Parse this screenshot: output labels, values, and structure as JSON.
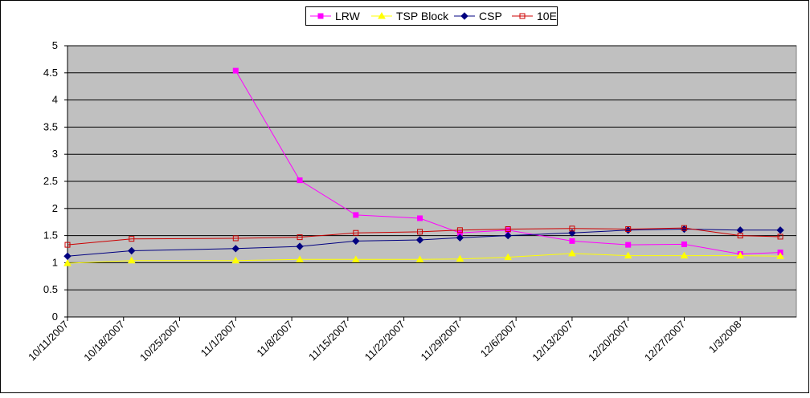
{
  "chart_data": {
    "type": "line",
    "title": "",
    "xlabel": "",
    "ylabel": "",
    "ylim": [
      0,
      5
    ],
    "ytick_step": 0.5,
    "yticks": [
      "0",
      "0.5",
      "1",
      "1.5",
      "2",
      "2.5",
      "3",
      "3.5",
      "4",
      "4.5",
      "5"
    ],
    "xlim": [
      "2007-10-11",
      "2008-01-10"
    ],
    "xticks": [
      {
        "date": "2007-10-11",
        "label": "10/11/2007"
      },
      {
        "date": "2007-10-18",
        "label": "10/18/2007"
      },
      {
        "date": "2007-10-25",
        "label": "10/25/2007"
      },
      {
        "date": "2007-11-01",
        "label": "11/1/2007"
      },
      {
        "date": "2007-11-08",
        "label": "11/8/2007"
      },
      {
        "date": "2007-11-15",
        "label": "11/15/2007"
      },
      {
        "date": "2007-11-22",
        "label": "11/22/2007"
      },
      {
        "date": "2007-11-29",
        "label": "11/29/2007"
      },
      {
        "date": "2007-12-06",
        "label": "12/6/2007"
      },
      {
        "date": "2007-12-13",
        "label": "12/13/2007"
      },
      {
        "date": "2007-12-20",
        "label": "12/20/2007"
      },
      {
        "date": "2007-12-27",
        "label": "12/27/2007"
      },
      {
        "date": "2008-01-03",
        "label": "1/3/2008"
      }
    ],
    "grid": true,
    "plot_background": "#c0c0c0",
    "legend_position": "top-center",
    "series": [
      {
        "name": "LRW",
        "color": "#ff00ff",
        "marker": "square-filled",
        "points": [
          {
            "x": "2007-11-01",
            "y": 4.54
          },
          {
            "x": "2007-11-09",
            "y": 2.52
          },
          {
            "x": "2007-11-16",
            "y": 1.88
          },
          {
            "x": "2007-11-24",
            "y": 1.82
          },
          {
            "x": "2007-11-29",
            "y": 1.55
          },
          {
            "x": "2007-12-05",
            "y": 1.6
          },
          {
            "x": "2007-12-13",
            "y": 1.4
          },
          {
            "x": "2007-12-20",
            "y": 1.33
          },
          {
            "x": "2007-12-27",
            "y": 1.34
          },
          {
            "x": "2008-01-03",
            "y": 1.16
          },
          {
            "x": "2008-01-08",
            "y": 1.19
          }
        ]
      },
      {
        "name": "TSP Block",
        "color": "#ffff00",
        "marker": "triangle",
        "points": [
          {
            "x": "2007-10-11",
            "y": 0.99
          },
          {
            "x": "2007-10-19",
            "y": 1.04
          },
          {
            "x": "2007-11-01",
            "y": 1.04
          },
          {
            "x": "2007-11-09",
            "y": 1.06
          },
          {
            "x": "2007-11-16",
            "y": 1.06
          },
          {
            "x": "2007-11-24",
            "y": 1.06
          },
          {
            "x": "2007-11-29",
            "y": 1.07
          },
          {
            "x": "2007-12-05",
            "y": 1.1
          },
          {
            "x": "2007-12-13",
            "y": 1.17
          },
          {
            "x": "2007-12-20",
            "y": 1.13
          },
          {
            "x": "2007-12-27",
            "y": 1.13
          },
          {
            "x": "2008-01-03",
            "y": 1.13
          },
          {
            "x": "2008-01-08",
            "y": 1.12
          }
        ]
      },
      {
        "name": "CSP",
        "color": "#000080",
        "marker": "diamond",
        "points": [
          {
            "x": "2007-10-11",
            "y": 1.12
          },
          {
            "x": "2007-10-19",
            "y": 1.22
          },
          {
            "x": "2007-11-01",
            "y": 1.26
          },
          {
            "x": "2007-11-09",
            "y": 1.3
          },
          {
            "x": "2007-11-16",
            "y": 1.4
          },
          {
            "x": "2007-11-24",
            "y": 1.42
          },
          {
            "x": "2007-11-29",
            "y": 1.46
          },
          {
            "x": "2007-12-05",
            "y": 1.5
          },
          {
            "x": "2007-12-13",
            "y": 1.55
          },
          {
            "x": "2007-12-20",
            "y": 1.6
          },
          {
            "x": "2007-12-27",
            "y": 1.62
          },
          {
            "x": "2008-01-03",
            "y": 1.6
          },
          {
            "x": "2008-01-08",
            "y": 1.6
          }
        ]
      },
      {
        "name": "10E",
        "color": "#cc0000",
        "marker": "square-open",
        "points": [
          {
            "x": "2007-10-11",
            "y": 1.33
          },
          {
            "x": "2007-10-19",
            "y": 1.44
          },
          {
            "x": "2007-11-01",
            "y": 1.45
          },
          {
            "x": "2007-11-09",
            "y": 1.47
          },
          {
            "x": "2007-11-16",
            "y": 1.55
          },
          {
            "x": "2007-11-24",
            "y": 1.57
          },
          {
            "x": "2007-11-29",
            "y": 1.6
          },
          {
            "x": "2007-12-05",
            "y": 1.62
          },
          {
            "x": "2007-12-13",
            "y": 1.63
          },
          {
            "x": "2007-12-20",
            "y": 1.62
          },
          {
            "x": "2007-12-27",
            "y": 1.64
          },
          {
            "x": "2008-01-03",
            "y": 1.5
          },
          {
            "x": "2008-01-08",
            "y": 1.48
          }
        ]
      }
    ]
  }
}
